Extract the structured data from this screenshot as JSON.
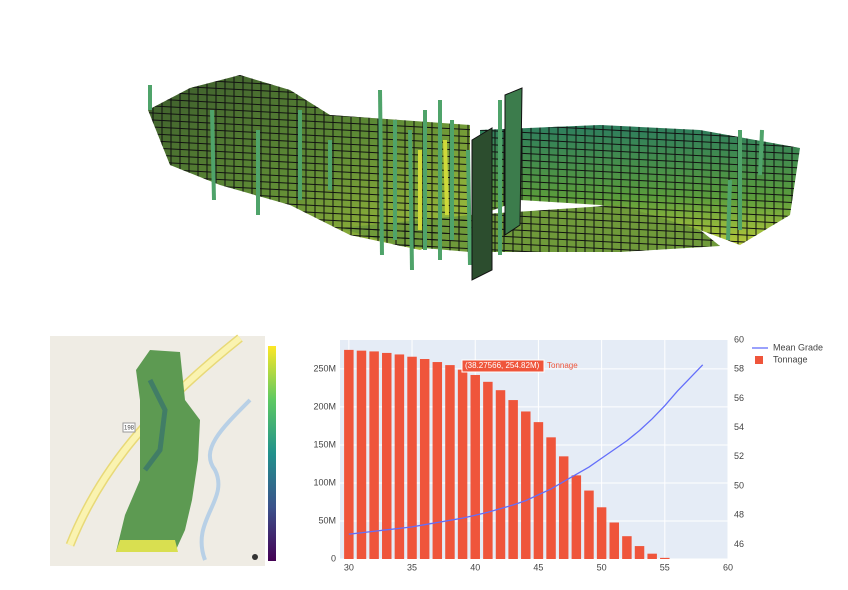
{
  "chart_data": {
    "type": "bar",
    "series": [
      {
        "name": "Mean Grade",
        "type": "line",
        "axis": "y2",
        "color": "#636efa",
        "x": [
          30,
          31,
          32,
          33,
          34,
          35,
          36,
          37,
          38,
          39,
          40,
          41,
          42,
          43,
          44,
          45,
          46,
          47,
          48,
          49,
          50,
          51,
          52,
          53,
          54,
          55,
          56,
          57,
          58
        ],
        "values": [
          46.7,
          46.8,
          46.9,
          47.0,
          47.1,
          47.2,
          47.35,
          47.5,
          47.65,
          47.8,
          48.0,
          48.2,
          48.45,
          48.7,
          49.0,
          49.4,
          49.8,
          50.3,
          50.8,
          51.3,
          51.9,
          52.5,
          53.1,
          53.8,
          54.6,
          55.5,
          56.5,
          57.4,
          58.3
        ]
      },
      {
        "name": "Tonnage",
        "type": "bar",
        "axis": "y",
        "color": "#ef553b",
        "x": [
          30,
          31,
          32,
          33,
          34,
          35,
          36,
          37,
          38,
          39,
          40,
          41,
          42,
          43,
          44,
          45,
          46,
          47,
          48,
          49,
          50,
          51,
          52,
          53,
          54,
          55
        ],
        "values": [
          275,
          274,
          273,
          271,
          269,
          266,
          263,
          259,
          255,
          249,
          242,
          233,
          222,
          209,
          194,
          180,
          160,
          135,
          110,
          90,
          68,
          48,
          30,
          17,
          7,
          1.5
        ]
      }
    ],
    "xlim": [
      29.3,
      60
    ],
    "xticks": [
      30,
      35,
      40,
      45,
      50,
      55,
      60
    ],
    "ylim": [
      0,
      288
    ],
    "yticks": [
      {
        "value": 0,
        "label": "0"
      },
      {
        "value": 50,
        "label": "50M"
      },
      {
        "value": 100,
        "label": "100M"
      },
      {
        "value": 150,
        "label": "150M"
      },
      {
        "value": 200,
        "label": "200M"
      },
      {
        "value": 250,
        "label": "250M"
      }
    ],
    "y2lim": [
      45,
      60
    ],
    "y2ticks": [
      46,
      48,
      50,
      52,
      54,
      56,
      58,
      60
    ],
    "grid": true,
    "tooltip": {
      "label": "(38.27566, 254.82M)",
      "name": "Tonnage"
    }
  },
  "map": {
    "road_label": "198"
  }
}
